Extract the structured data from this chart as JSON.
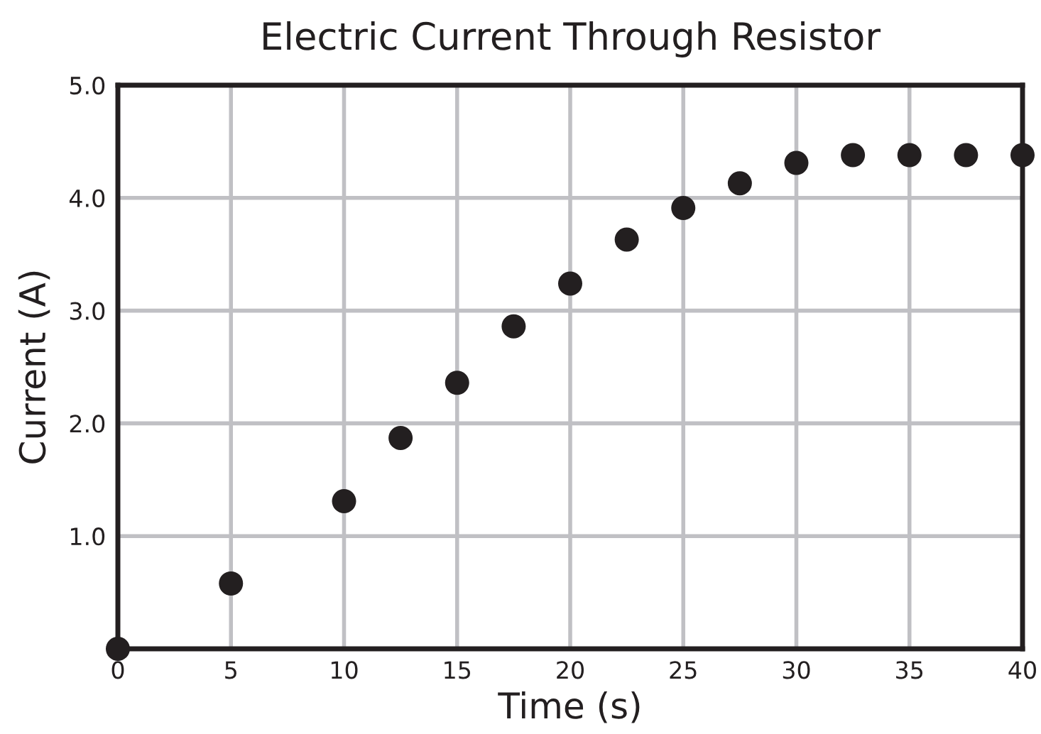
{
  "chart_data": {
    "type": "scatter",
    "title": "Electric Current Through Resistor",
    "xlabel": "Time (s)",
    "ylabel": "Current (A)",
    "x": [
      0,
      5,
      10,
      12.5,
      15,
      17.5,
      20,
      22.5,
      25,
      27.5,
      30,
      32.5,
      35,
      37.5,
      40
    ],
    "series": [
      {
        "color": "#231f20",
        "values": [
          0,
          0.58,
          1.31,
          1.87,
          2.36,
          2.86,
          3.24,
          3.63,
          3.91,
          4.13,
          4.31,
          4.38,
          4.38,
          4.38,
          4.38
        ]
      }
    ],
    "xlim": [
      0,
      40
    ],
    "ylim": [
      0,
      5
    ],
    "xticks": [
      0,
      5,
      10,
      15,
      20,
      25,
      30,
      35,
      40
    ],
    "yticks": [
      {
        "value": 1,
        "label": "1.0"
      },
      {
        "value": 2,
        "label": "2.0"
      },
      {
        "value": 3,
        "label": "3.0"
      },
      {
        "value": 4,
        "label": "4.0"
      },
      {
        "value": 5,
        "label": "5.0"
      }
    ],
    "grid": true,
    "marker": "circle"
  }
}
